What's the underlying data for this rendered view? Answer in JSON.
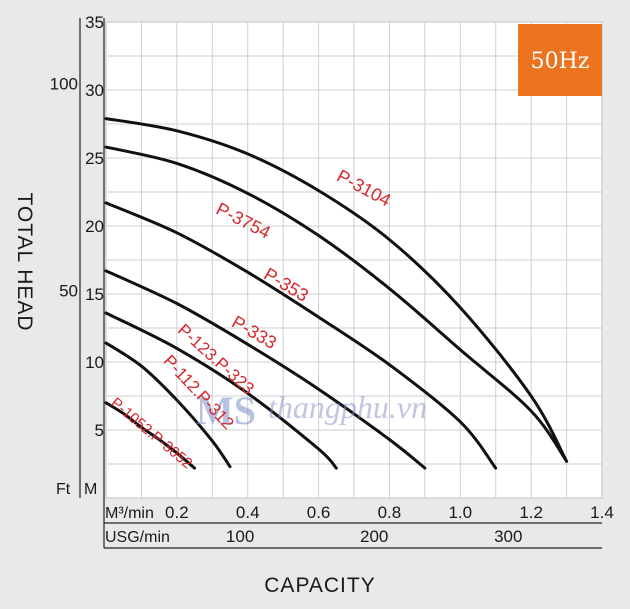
{
  "badge": {
    "text": "50Hz",
    "color": "#ec7420"
  },
  "watermark": {
    "logo": "MS",
    "site": "thangphu.vn"
  },
  "chart_data": {
    "type": "line",
    "xlabel": "CAPACITY",
    "ylabel": "TOTAL HEAD",
    "x_unit_primary": "M³/min",
    "x_unit_secondary": "USG/min",
    "y_unit_primary": "M",
    "y_unit_secondary": "Ft",
    "xlim": [
      0,
      1.4
    ],
    "ylim": [
      0,
      35
    ],
    "x_ticks": [
      "0.2",
      "0.4",
      "0.6",
      "0.8",
      "1.0",
      "1.2",
      "1.4"
    ],
    "x_tick_values": [
      0.2,
      0.4,
      0.6,
      0.8,
      1.0,
      1.2,
      1.4
    ],
    "x2_ticks": [
      "100",
      "200",
      "300"
    ],
    "x2_tick_values": [
      0.3785,
      0.757,
      1.1355
    ],
    "y_ticks": [
      "5",
      "10",
      "15",
      "20",
      "25",
      "30",
      "35"
    ],
    "y_tick_values": [
      5,
      10,
      15,
      20,
      25,
      30,
      35
    ],
    "y2_ticks": [
      "50",
      "100"
    ],
    "y2_tick_values": [
      15.24,
      30.48
    ],
    "grid": true,
    "curve_color": "#111111",
    "label_color": "#d6262b",
    "series": [
      {
        "name": "P-3104",
        "x": [
          0,
          0.2,
          0.4,
          0.6,
          0.8,
          1.0,
          1.2,
          1.3
        ],
        "y": [
          27.9,
          27.0,
          25.3,
          22.6,
          19.0,
          14.0,
          7.5,
          2.7
        ]
      },
      {
        "name": "P-3754",
        "x": [
          0,
          0.2,
          0.4,
          0.6,
          0.8,
          1.0,
          1.2,
          1.3
        ],
        "y": [
          25.8,
          24.6,
          22.4,
          19.3,
          15.4,
          10.9,
          6.4,
          2.7
        ]
      },
      {
        "name": "P-353",
        "x": [
          0,
          0.2,
          0.4,
          0.6,
          0.8,
          1.0,
          1.1
        ],
        "y": [
          21.7,
          19.5,
          16.6,
          13.3,
          9.8,
          5.6,
          2.2
        ]
      },
      {
        "name": "P-333",
        "x": [
          0,
          0.2,
          0.4,
          0.6,
          0.8,
          0.9
        ],
        "y": [
          16.7,
          14.3,
          11.3,
          8.0,
          4.3,
          2.2
        ]
      },
      {
        "name": "P-123.P-323",
        "x": [
          0,
          0.2,
          0.4,
          0.6,
          0.65
        ],
        "y": [
          13.6,
          11.0,
          7.7,
          3.6,
          2.2
        ]
      },
      {
        "name": "P-112.P-312",
        "x": [
          0,
          0.1,
          0.2,
          0.3,
          0.35
        ],
        "y": [
          11.4,
          9.7,
          7.2,
          4.2,
          2.3
        ]
      },
      {
        "name": "P-1052.P-3052",
        "x": [
          0,
          0.05,
          0.1,
          0.15,
          0.2,
          0.25
        ],
        "y": [
          7.0,
          6.2,
          5.2,
          4.3,
          3.3,
          2.2
        ]
      }
    ]
  }
}
